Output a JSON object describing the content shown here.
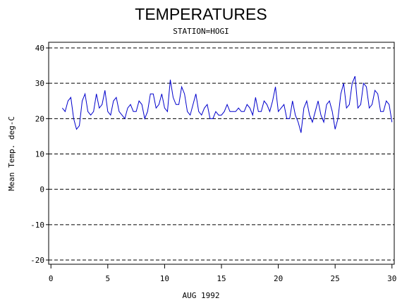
{
  "chart_data": {
    "type": "line",
    "title": "TEMPERATURES",
    "subtitle": "STATION=HOGI",
    "y_label": "Mean Temp. deg-C",
    "x_label": "AUG 1992",
    "xlim": [
      -0.2,
      30.2
    ],
    "xticks": [
      0,
      5,
      10,
      15,
      20,
      25,
      30
    ],
    "ylim": [
      -21.2,
      41.6
    ],
    "yticks": [
      -20,
      -10,
      0,
      10,
      20,
      30,
      40
    ],
    "grid": true,
    "x": [
      1,
      1.25,
      1.5,
      1.75,
      2,
      2.25,
      2.5,
      2.75,
      3,
      3.25,
      3.5,
      3.75,
      4,
      4.25,
      4.5,
      4.75,
      5,
      5.25,
      5.5,
      5.75,
      6,
      6.25,
      6.5,
      6.75,
      7,
      7.25,
      7.5,
      7.75,
      8,
      8.25,
      8.5,
      8.75,
      9,
      9.25,
      9.5,
      9.75,
      10,
      10.25,
      10.5,
      10.75,
      11,
      11.25,
      11.5,
      11.75,
      12,
      12.25,
      12.5,
      12.75,
      13,
      13.25,
      13.5,
      13.75,
      14,
      14.25,
      14.5,
      14.75,
      15,
      15.25,
      15.5,
      15.75,
      16,
      16.25,
      16.5,
      16.75,
      17,
      17.25,
      17.5,
      17.75,
      18,
      18.25,
      18.5,
      18.75,
      19,
      19.25,
      19.5,
      19.75,
      20,
      20.25,
      20.5,
      20.75,
      21,
      21.25,
      21.5,
      21.75,
      22,
      22.25,
      22.5,
      22.75,
      23,
      23.25,
      23.5,
      23.75,
      24,
      24.25,
      24.5,
      24.75,
      25,
      25.25,
      25.5,
      25.75,
      26,
      26.25,
      26.5,
      26.75,
      27,
      27.25,
      27.5,
      27.75,
      28,
      28.25,
      28.5,
      28.75,
      29,
      29.25,
      29.5,
      29.75,
      30
    ],
    "series": [
      {
        "name": "Mean Temp",
        "color": "#0000cc",
        "values": [
          23,
          22,
          25,
          26,
          20,
          17,
          18,
          25,
          27,
          22,
          21,
          22,
          27,
          23,
          24,
          28,
          22,
          21,
          25,
          26,
          22,
          21,
          20,
          23,
          24,
          22,
          22,
          25,
          24,
          20,
          22,
          27,
          27,
          23,
          24,
          27,
          23,
          22,
          31,
          26,
          24,
          24,
          29,
          27,
          22,
          21,
          24,
          27,
          22,
          21,
          23,
          24,
          20,
          20,
          22,
          21,
          21,
          22,
          24,
          22,
          22,
          22,
          23,
          22,
          22,
          24,
          23,
          21,
          26,
          22,
          22,
          25,
          24,
          22,
          25,
          29,
          22,
          23,
          24,
          20,
          20,
          25,
          21,
          19,
          16,
          23,
          25,
          21,
          19,
          22,
          25,
          21,
          19,
          24,
          25,
          22,
          17,
          20,
          27,
          30,
          23,
          24,
          30,
          32,
          23,
          24,
          30,
          29,
          23,
          24,
          28,
          27,
          22,
          22,
          25,
          24,
          19
        ]
      }
    ]
  }
}
